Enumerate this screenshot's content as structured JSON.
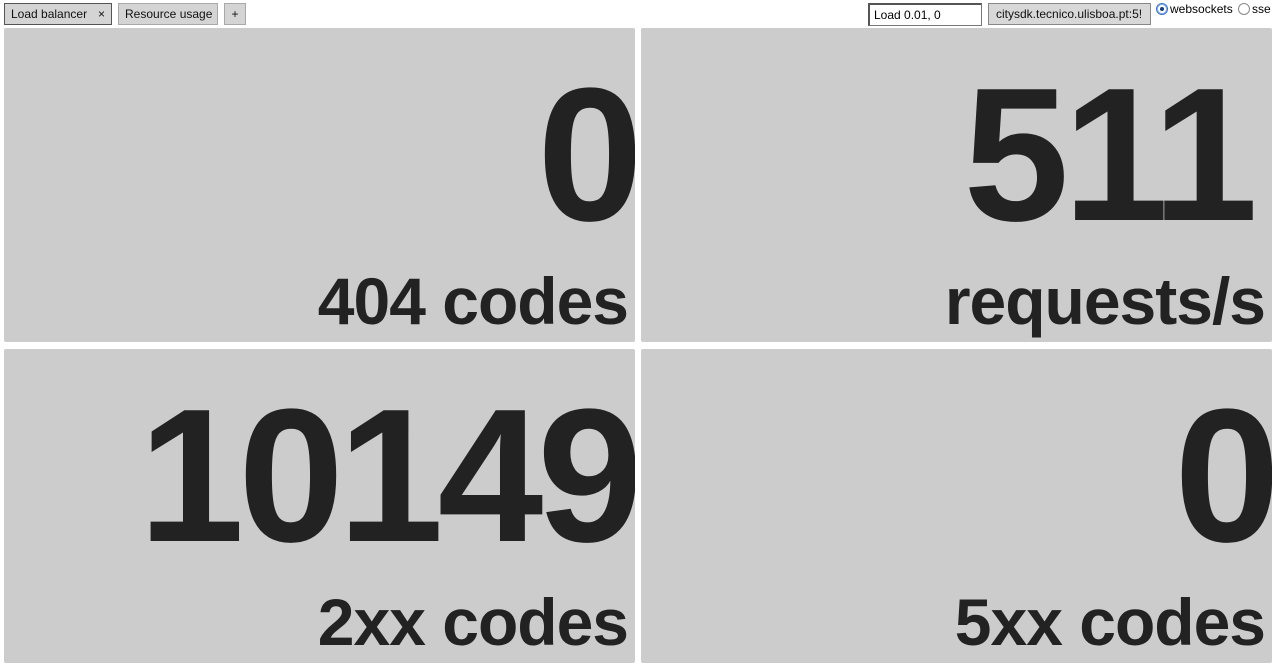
{
  "tabs": [
    {
      "label": "Load balancer",
      "close": "×"
    },
    {
      "label": "Resource usage"
    },
    {
      "label": "+"
    }
  ],
  "load_input": {
    "value": "Load 0.01, 0"
  },
  "host_button": {
    "label": "citysdk.tecnico.ulisboa.pt:5!"
  },
  "transport": {
    "options": [
      {
        "label": "websockets",
        "checked": true
      },
      {
        "label": "sse",
        "checked": false
      }
    ]
  },
  "panels": [
    {
      "value": "0",
      "label": "404 codes"
    },
    {
      "value": "511",
      "label": "requests/s"
    },
    {
      "value": "10149",
      "label": "2xx codes"
    },
    {
      "value": "0",
      "label": "5xx codes"
    }
  ],
  "colors": {
    "panel_background": "#cccccc",
    "panel_text": "#222222"
  }
}
